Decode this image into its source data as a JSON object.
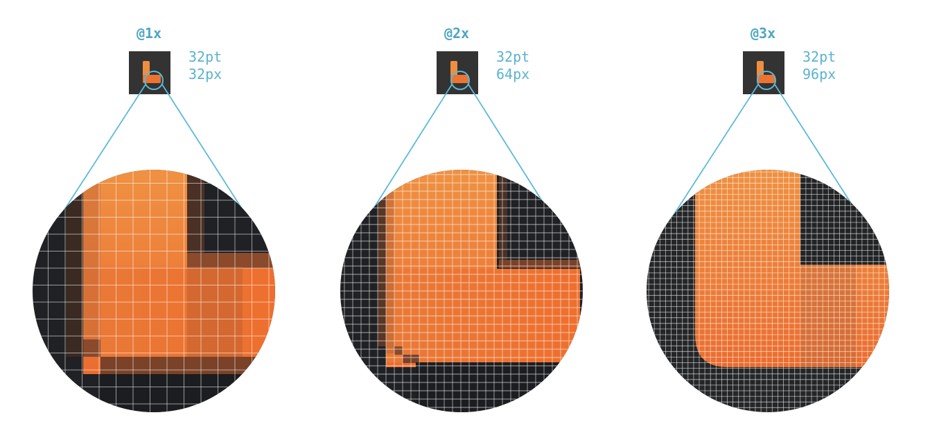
{
  "colors": {
    "accent": "#5bbad8",
    "label": "#4da6c5",
    "icon_bg": "#333333",
    "dark": "#1d1f22",
    "orange_light": "#ef8c3e",
    "orange_dark": "#ec7432",
    "grid_line": "#ffffff"
  },
  "icon": {
    "semantic": "orange-l-shape-app-icon"
  },
  "panels": [
    {
      "scale_label": "@1x",
      "points": "32pt",
      "pixels": "32px"
    },
    {
      "scale_label": "@2x",
      "points": "32pt",
      "pixels": "64px"
    },
    {
      "scale_label": "@3x",
      "points": "32pt",
      "pixels": "96px"
    }
  ]
}
